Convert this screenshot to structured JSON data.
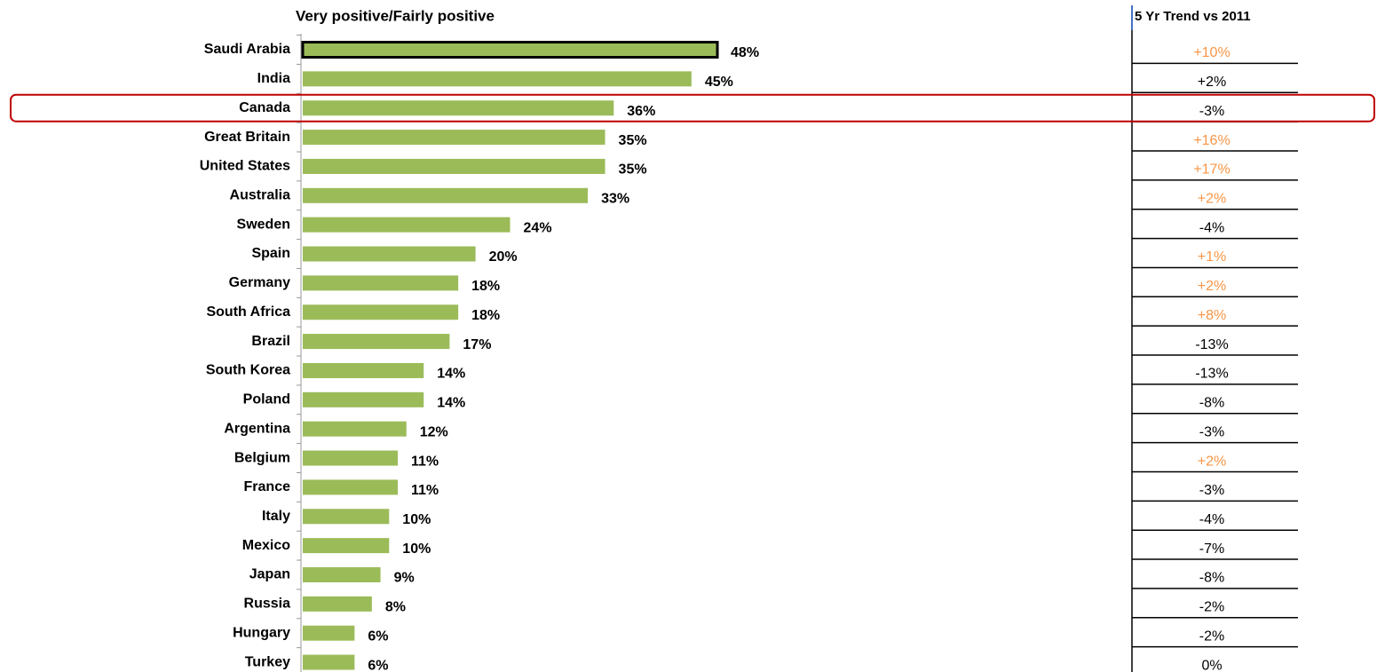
{
  "chart_data": {
    "type": "bar",
    "orientation": "horizontal",
    "title": "Very positive/Fairly positive",
    "categories": [
      "Saudi Arabia",
      "India",
      "Canada",
      "Great Britain",
      "United States",
      "Australia",
      "Sweden",
      "Spain",
      "Germany",
      "South Africa",
      "Brazil",
      "South Korea",
      "Poland",
      "Argentina",
      "Belgium",
      "France",
      "Italy",
      "Mexico",
      "Japan",
      "Russia",
      "Hungary",
      "Turkey"
    ],
    "values": [
      48,
      45,
      36,
      35,
      35,
      33,
      24,
      20,
      18,
      18,
      17,
      14,
      14,
      12,
      11,
      11,
      10,
      10,
      9,
      8,
      6,
      6
    ],
    "value_labels": [
      "48%",
      "45%",
      "36%",
      "35%",
      "35%",
      "33%",
      "24%",
      "20%",
      "18%",
      "18%",
      "17%",
      "14%",
      "14%",
      "12%",
      "11%",
      "11%",
      "10%",
      "10%",
      "9%",
      "8%",
      "6%",
      "6%"
    ],
    "color": "#9bbb59",
    "table": {
      "header": "5 Yr Trend vs 2011",
      "rows": [
        "+10%",
        "+2%",
        "-3%",
        "+16%",
        "+17%",
        "+2%",
        "-4%",
        "+1%",
        "+2%",
        "+8%",
        "-13%",
        "-13%",
        "-8%",
        "-3%",
        "+2%",
        "-3%",
        "-4%",
        "-7%",
        "-8%",
        "-2%",
        "-2%",
        "0%"
      ],
      "colors": [
        "#f79646",
        "#000000",
        "#000000",
        "#f79646",
        "#f79646",
        "#f79646",
        "#000000",
        "#f79646",
        "#f79646",
        "#f79646",
        "#000000",
        "#000000",
        "#000000",
        "#000000",
        "#f79646",
        "#000000",
        "#000000",
        "#000000",
        "#000000",
        "#000000",
        "#000000",
        "#000000"
      ]
    },
    "highlight": "Canada",
    "highlight_color": "#c00000"
  }
}
